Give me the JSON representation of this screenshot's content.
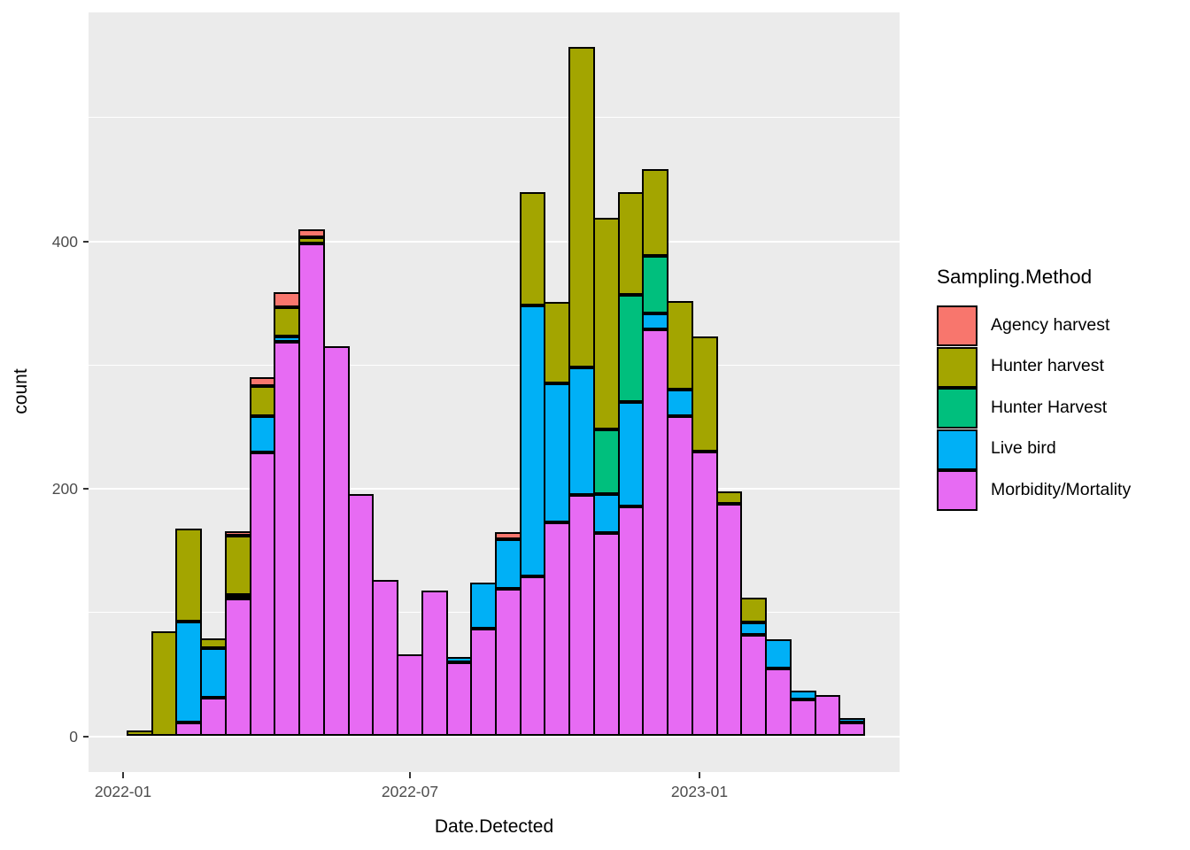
{
  "figure": {
    "background": "#FFFFFF",
    "panel_background": "#EBEBEB",
    "gridline_color": "#FFFFFF",
    "tick_label_color": "#4D4D4D",
    "axis_title_color": "#000000",
    "bar_border_color": "#000000"
  },
  "chart_data": {
    "type": "bar",
    "stacked": true,
    "title": "",
    "xlabel": "Date.Detected",
    "ylabel": "count",
    "ylim": [
      0,
      585
    ],
    "grid": true,
    "y_major_gridlines": [
      0,
      200,
      400
    ],
    "y_minor_gridlines": [
      100,
      300,
      500
    ],
    "y_tick_labels": [
      "0",
      "200",
      "400"
    ],
    "y_tick_values": [
      0,
      200,
      400
    ],
    "x_tick_labels": [
      "2022-01",
      "2022-07",
      "2023-01"
    ],
    "bin_start_dates": [
      "2022-01-03",
      "2022-01-18",
      "2022-02-03",
      "2022-02-18",
      "2022-03-06",
      "2022-03-21",
      "2022-04-06",
      "2022-04-21",
      "2022-05-07",
      "2022-05-22",
      "2022-06-07",
      "2022-06-22",
      "2022-07-08",
      "2022-07-23",
      "2022-08-08",
      "2022-08-23",
      "2022-09-08",
      "2022-09-23",
      "2022-10-09",
      "2022-10-24",
      "2022-11-09",
      "2022-11-24",
      "2022-12-10",
      "2022-12-25",
      "2023-01-10",
      "2023-01-25",
      "2023-02-10",
      "2023-02-25",
      "2023-03-13",
      "2023-03-28"
    ],
    "legend": {
      "title": "Sampling.Method",
      "position": "right"
    },
    "series": [
      {
        "name": "Agency harvest",
        "color": "#F8766D",
        "values": [
          0,
          0,
          0,
          0,
          4,
          7,
          12,
          7,
          0,
          0,
          0,
          0,
          0,
          0,
          0,
          6,
          0,
          0,
          0,
          0,
          0,
          0,
          0,
          0,
          0,
          0,
          0,
          0,
          0,
          0
        ]
      },
      {
        "name": "Hunter harvest",
        "color": "#A3A500",
        "values": [
          5,
          85,
          75,
          8,
          48,
          24,
          24,
          5,
          0,
          0,
          0,
          0,
          0,
          0,
          0,
          0,
          92,
          66,
          259,
          171,
          83,
          70,
          72,
          93,
          10,
          20,
          0,
          0,
          0,
          0
        ]
      },
      {
        "name": "Hunter Harvest",
        "color": "#00BF7D",
        "values": [
          0,
          0,
          0,
          0,
          0,
          0,
          0,
          0,
          0,
          0,
          0,
          0,
          0,
          0,
          0,
          0,
          0,
          0,
          0,
          52,
          87,
          46,
          0,
          0,
          0,
          0,
          0,
          0,
          0,
          0
        ]
      },
      {
        "name": "Live bird",
        "color": "#00B0F6",
        "values": [
          0,
          0,
          82,
          40,
          3,
          30,
          4,
          0,
          0,
          0,
          0,
          0,
          0,
          4,
          37,
          40,
          219,
          112,
          103,
          32,
          84,
          13,
          21,
          0,
          0,
          10,
          23,
          7,
          0,
          4
        ]
      },
      {
        "name": "Morbidity/Mortality",
        "color": "#E76BF3",
        "values": [
          0,
          0,
          11,
          31,
          111,
          229,
          319,
          398,
          315,
          196,
          126,
          66,
          118,
          60,
          87,
          119,
          129,
          173,
          195,
          164,
          186,
          329,
          259,
          230,
          188,
          82,
          55,
          30,
          33,
          11
        ]
      }
    ]
  }
}
